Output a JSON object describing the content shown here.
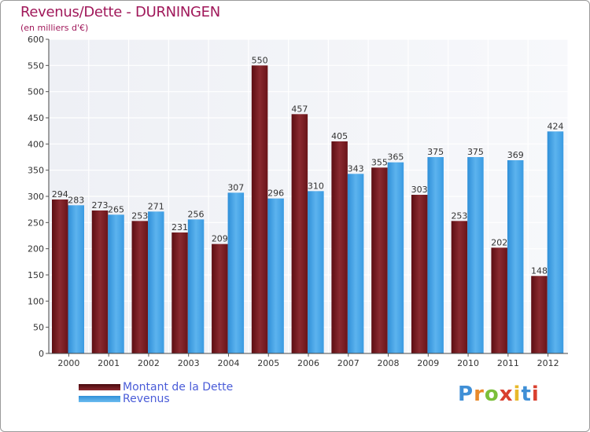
{
  "chart_data": {
    "type": "bar",
    "title": "Revenus/Dette - DURNINGEN",
    "subtitle": "(en milliers d'€)",
    "xlabel": "",
    "ylabel": "",
    "ylim": [
      0,
      600
    ],
    "yticks": [
      0,
      50,
      100,
      150,
      200,
      250,
      300,
      350,
      400,
      450,
      500,
      550,
      600
    ],
    "grid": true,
    "categories": [
      "2000",
      "2001",
      "2002",
      "2003",
      "2004",
      "2005",
      "2006",
      "2007",
      "2008",
      "2009",
      "2010",
      "2011",
      "2012"
    ],
    "series": [
      {
        "name": "Montant de la Dette",
        "color": "#7a1a20",
        "values": [
          294,
          273,
          253,
          231,
          209,
          550,
          457,
          405,
          355,
          303,
          253,
          202,
          148
        ]
      },
      {
        "name": "Revenus",
        "color": "#3b9de0",
        "values": [
          283,
          265,
          271,
          256,
          307,
          296,
          310,
          343,
          365,
          375,
          375,
          369,
          424
        ]
      }
    ],
    "legend_position": "bottom-left"
  },
  "brand": {
    "text": "Proxiti"
  }
}
